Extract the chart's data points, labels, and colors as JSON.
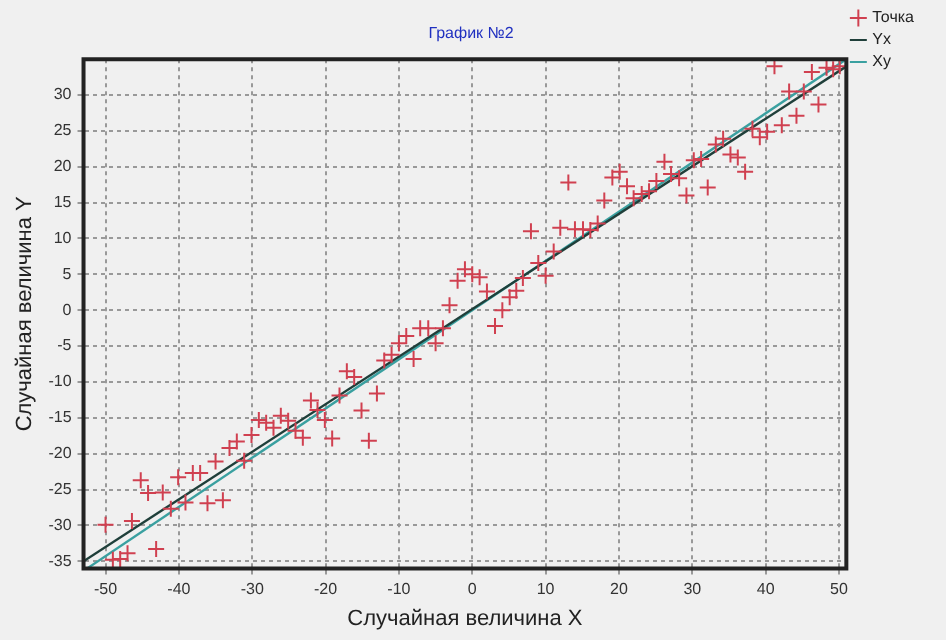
{
  "chart_data": {
    "type": "scatter",
    "title": "График №2",
    "xlabel": "Случайная величина X",
    "ylabel": "Случайная величина Y",
    "xlim": [
      -53,
      51
    ],
    "ylim": [
      -36,
      35
    ],
    "xticks": [
      -50,
      -40,
      -30,
      -20,
      -10,
      0,
      10,
      20,
      30,
      40,
      50
    ],
    "yticks": [
      -35,
      -30,
      -25,
      -20,
      -15,
      -10,
      -5,
      0,
      5,
      10,
      15,
      20,
      25,
      30
    ],
    "grid": true,
    "legend": "right",
    "series": [
      {
        "name": "Точка",
        "type": "scatter",
        "marker": "cross",
        "color": "#d04050",
        "x": [
          -50,
          -49,
          -48,
          -47,
          -46.4,
          -45.2,
          -44.2,
          -43.1,
          -42.2,
          -41.1,
          -40.1,
          -39.1,
          -38.1,
          -37.1,
          -36.1,
          -35,
          -34,
          -33.1,
          -32.1,
          -31.1,
          -30.1,
          -29.1,
          -28.1,
          -27.1,
          -26.1,
          -25.1,
          -24.1,
          -23.1,
          -22,
          -21.1,
          -20.1,
          -19.1,
          -18.1,
          -17.1,
          -16.1,
          -15.1,
          -14.1,
          -13,
          -12,
          -11,
          -10,
          -9,
          -8,
          -7.1,
          -6,
          -5,
          -4,
          -3.1,
          -2,
          -1,
          0,
          1,
          2,
          3.1,
          4.1,
          5.1,
          6,
          6.9,
          8,
          9,
          10,
          11.1,
          12,
          13.1,
          14,
          15.1,
          16.1,
          17.1,
          18,
          19.1,
          20.1,
          21.1,
          22,
          23.1,
          24.1,
          25.1,
          26.2,
          27.1,
          28.2,
          29.2,
          30.2,
          31.2,
          32.1,
          33.2,
          34.2,
          35.2,
          36.2,
          37.2,
          38.2,
          39.2,
          40.2,
          41.2,
          42.2,
          43.2,
          44.2,
          45.2,
          46.3,
          47.2,
          48.3,
          49.2,
          50.1
        ],
        "values": [
          -29.9,
          -34.8,
          -34.7,
          -33.9,
          -29.4,
          -23.7,
          -25.5,
          -33.3,
          -25.4,
          -27.7,
          -23.3,
          -26.8,
          -22.7,
          -22.7,
          -26.9,
          -21.1,
          -26.5,
          -19.2,
          -18.3,
          -21,
          -17.4,
          -15.3,
          -15.7,
          -16.4,
          -14.7,
          -15.4,
          -16.8,
          -17.8,
          -12.6,
          -13.9,
          -15.3,
          -17.9,
          -11.9,
          -8.5,
          -9.3,
          -14,
          -18.2,
          -11.6,
          -7,
          -6.2,
          -4.6,
          -3.6,
          -6.8,
          -2.5,
          -2.5,
          -4.6,
          -2.5,
          0.7,
          4.1,
          5.7,
          5,
          4.6,
          2.6,
          -2.2,
          0,
          1.8,
          2.7,
          4.5,
          11,
          6.6,
          4.8,
          8.2,
          11.5,
          17.8,
          11.3,
          11.3,
          11.2,
          12.1,
          15.3,
          18.5,
          19.3,
          17.3,
          15.6,
          16.2,
          16.6,
          18,
          20.7,
          19,
          18.4,
          16,
          20.9,
          21.1,
          17.1,
          23.1,
          23.9,
          21.7,
          21.3,
          19.3,
          25.3,
          24.1,
          24.9,
          34,
          25.8,
          30.5,
          27.1,
          30.5,
          33.2,
          28.7,
          33.8,
          33.6,
          34
        ]
      },
      {
        "name": "Yx",
        "type": "line",
        "marker": "none",
        "color": "#1f3f3a",
        "x": [
          -53,
          51
        ],
        "values": [
          -35,
          34
        ]
      },
      {
        "name": "Xy",
        "type": "line",
        "marker": "none",
        "color": "#3aa0a0",
        "x": [
          -52.5,
          51
        ],
        "values": [
          -36,
          35
        ]
      }
    ]
  }
}
